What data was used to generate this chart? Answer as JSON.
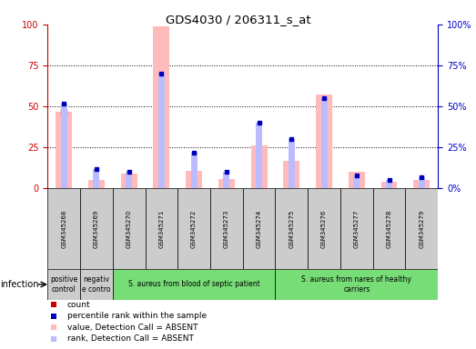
{
  "title": "GDS4030 / 206311_s_at",
  "samples": [
    "GSM345268",
    "GSM345269",
    "GSM345270",
    "GSM345271",
    "GSM345272",
    "GSM345273",
    "GSM345274",
    "GSM345275",
    "GSM345276",
    "GSM345277",
    "GSM345278",
    "GSM345279"
  ],
  "absent_value_bars": [
    47,
    5,
    9,
    99,
    11,
    6,
    26,
    17,
    57,
    10,
    4,
    5
  ],
  "absent_rank_bars": [
    52,
    12,
    10,
    70,
    22,
    10,
    40,
    30,
    55,
    8,
    5,
    7
  ],
  "count_values": [
    47,
    0,
    0,
    0,
    0,
    0,
    0,
    0,
    0,
    0,
    0,
    0
  ],
  "rank_values": [
    52,
    12,
    10,
    70,
    22,
    10,
    40,
    30,
    55,
    8,
    5,
    7
  ],
  "groups": [
    {
      "label": "positive\ncontrol",
      "start": 0,
      "end": 1,
      "color": "#cccccc"
    },
    {
      "label": "negativ\ne contro",
      "start": 1,
      "end": 2,
      "color": "#cccccc"
    },
    {
      "label": "S. aureus from blood of septic patient",
      "start": 2,
      "end": 7,
      "color": "#77dd77"
    },
    {
      "label": "S. aureus from nares of healthy\ncarriers",
      "start": 7,
      "end": 12,
      "color": "#77dd77"
    }
  ],
  "infection_label": "infection",
  "ylim": [
    0,
    100
  ],
  "yticks": [
    0,
    25,
    50,
    75,
    100
  ],
  "left_axis_color": "#cc0000",
  "right_axis_color": "#0000cc",
  "count_color": "#cc0000",
  "rank_color": "#0000bb",
  "absent_value_color": "#ffbbbb",
  "absent_rank_color": "#bbbbff",
  "grid_color": "#000000",
  "bg_color": "#ffffff",
  "sample_box_color": "#cccccc",
  "bar_width": 0.5,
  "rank_bar_width": 0.2
}
